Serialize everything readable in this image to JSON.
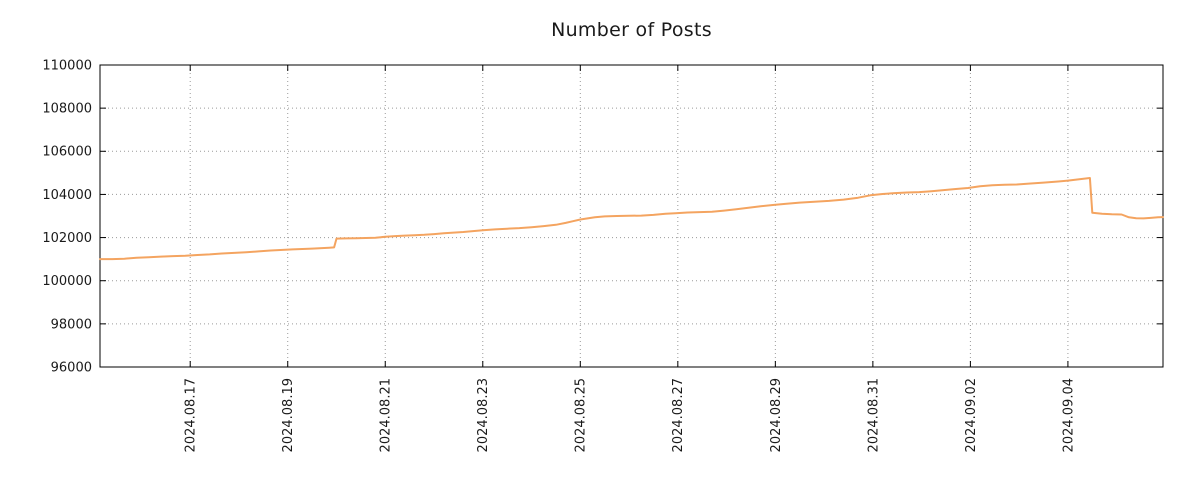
{
  "chart_data": {
    "type": "line",
    "title": "Number of Posts",
    "line_color": "#f4a460",
    "grid_color": "#9a9a9a",
    "background": "#ffffff",
    "grid": true,
    "legend": "none",
    "x_unit": "days since 2024-08-15 00:00",
    "xlim": [
      0.15,
      21.95
    ],
    "ylim": [
      96000,
      110000
    ],
    "x_ticks": [
      {
        "pos": 2,
        "label": "2024.08.17"
      },
      {
        "pos": 4,
        "label": "2024.08.19"
      },
      {
        "pos": 6,
        "label": "2024.08.21"
      },
      {
        "pos": 8,
        "label": "2024.08.23"
      },
      {
        "pos": 10,
        "label": "2024.08.25"
      },
      {
        "pos": 12,
        "label": "2024.08.27"
      },
      {
        "pos": 14,
        "label": "2024.08.29"
      },
      {
        "pos": 16,
        "label": "2024.08.31"
      },
      {
        "pos": 18,
        "label": "2024.09.02"
      },
      {
        "pos": 20,
        "label": "2024.09.04"
      }
    ],
    "y_ticks": [
      {
        "pos": 96000,
        "label": "96000"
      },
      {
        "pos": 98000,
        "label": "98000"
      },
      {
        "pos": 100000,
        "label": "100000"
      },
      {
        "pos": 102000,
        "label": "102000"
      },
      {
        "pos": 104000,
        "label": "104000"
      },
      {
        "pos": 106000,
        "label": "106000"
      },
      {
        "pos": 108000,
        "label": "108000"
      },
      {
        "pos": 110000,
        "label": "110000"
      }
    ],
    "points": [
      [
        0.15,
        101000
      ],
      [
        0.4,
        101000
      ],
      [
        0.65,
        101020
      ],
      [
        0.9,
        101060
      ],
      [
        1.15,
        101090
      ],
      [
        1.4,
        101120
      ],
      [
        1.65,
        101140
      ],
      [
        1.9,
        101160
      ],
      [
        2.15,
        101190
      ],
      [
        2.4,
        101220
      ],
      [
        2.65,
        101260
      ],
      [
        2.9,
        101290
      ],
      [
        3.15,
        101320
      ],
      [
        3.4,
        101360
      ],
      [
        3.65,
        101400
      ],
      [
        3.9,
        101430
      ],
      [
        4.1,
        101450
      ],
      [
        4.3,
        101470
      ],
      [
        4.5,
        101490
      ],
      [
        4.7,
        101510
      ],
      [
        4.85,
        101530
      ],
      [
        4.95,
        101545
      ],
      [
        5.0,
        101950
      ],
      [
        5.2,
        101960
      ],
      [
        5.4,
        101970
      ],
      [
        5.6,
        101980
      ],
      [
        5.8,
        101990
      ],
      [
        6.0,
        102040
      ],
      [
        6.2,
        102070
      ],
      [
        6.4,
        102090
      ],
      [
        6.6,
        102110
      ],
      [
        6.8,
        102130
      ],
      [
        7.0,
        102160
      ],
      [
        7.2,
        102200
      ],
      [
        7.4,
        102230
      ],
      [
        7.6,
        102260
      ],
      [
        7.8,
        102300
      ],
      [
        8.0,
        102340
      ],
      [
        8.25,
        102380
      ],
      [
        8.5,
        102410
      ],
      [
        8.75,
        102440
      ],
      [
        9.0,
        102480
      ],
      [
        9.25,
        102530
      ],
      [
        9.5,
        102590
      ],
      [
        9.7,
        102680
      ],
      [
        9.85,
        102760
      ],
      [
        10.0,
        102840
      ],
      [
        10.15,
        102890
      ],
      [
        10.3,
        102940
      ],
      [
        10.5,
        102980
      ],
      [
        10.75,
        103000
      ],
      [
        11.0,
        103010
      ],
      [
        11.25,
        103020
      ],
      [
        11.5,
        103050
      ],
      [
        11.75,
        103100
      ],
      [
        11.95,
        103130
      ],
      [
        12.2,
        103160
      ],
      [
        12.45,
        103180
      ],
      [
        12.7,
        103200
      ],
      [
        12.95,
        103250
      ],
      [
        13.2,
        103310
      ],
      [
        13.45,
        103380
      ],
      [
        13.7,
        103450
      ],
      [
        13.95,
        103510
      ],
      [
        14.2,
        103560
      ],
      [
        14.5,
        103620
      ],
      [
        14.8,
        103660
      ],
      [
        15.1,
        103700
      ],
      [
        15.4,
        103760
      ],
      [
        15.7,
        103850
      ],
      [
        15.95,
        103960
      ],
      [
        16.2,
        104020
      ],
      [
        16.45,
        104060
      ],
      [
        16.7,
        104090
      ],
      [
        16.95,
        104110
      ],
      [
        17.2,
        104150
      ],
      [
        17.45,
        104200
      ],
      [
        17.7,
        104250
      ],
      [
        17.95,
        104300
      ],
      [
        18.2,
        104380
      ],
      [
        18.45,
        104430
      ],
      [
        18.7,
        104450
      ],
      [
        18.95,
        104460
      ],
      [
        19.2,
        104500
      ],
      [
        19.5,
        104550
      ],
      [
        19.8,
        104600
      ],
      [
        20.0,
        104640
      ],
      [
        20.15,
        104680
      ],
      [
        20.3,
        104720
      ],
      [
        20.45,
        104760
      ],
      [
        20.5,
        103150
      ],
      [
        20.7,
        103100
      ],
      [
        20.9,
        103080
      ],
      [
        21.1,
        103070
      ],
      [
        21.25,
        102940
      ],
      [
        21.4,
        102900
      ],
      [
        21.55,
        102890
      ],
      [
        21.7,
        102910
      ],
      [
        21.85,
        102940
      ],
      [
        21.95,
        102950
      ]
    ]
  }
}
